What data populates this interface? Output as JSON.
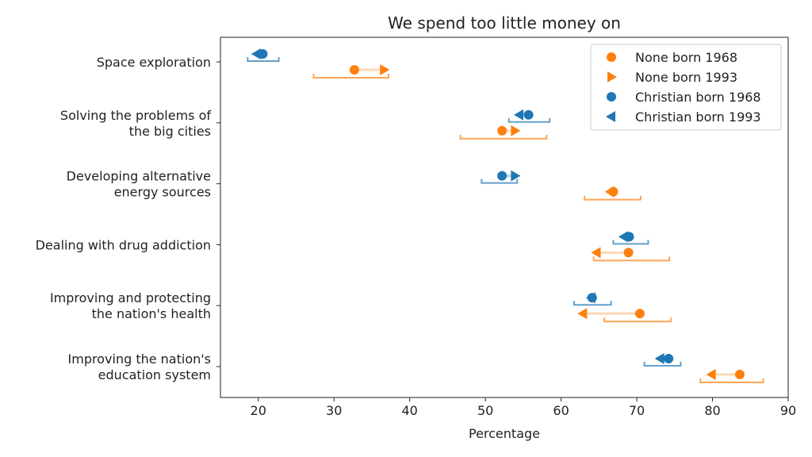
{
  "chart_data": {
    "type": "scatter",
    "title": "We spend too little money on",
    "xlabel": "Percentage",
    "ylabel": "",
    "xlim": [
      15,
      90
    ],
    "xticks": [
      20,
      30,
      40,
      50,
      60,
      70,
      80,
      90
    ],
    "grid": false,
    "legend_position": "top-right",
    "colors": {
      "none": "#ff7f0e",
      "christian": "#1f77b4"
    },
    "categories": [
      [
        "Space exploration"
      ],
      [
        "Solving the problems of",
        "the big cities"
      ],
      [
        "Developing alternative",
        "energy sources"
      ],
      [
        "Dealing with drug addiction"
      ],
      [
        "Improving and protecting",
        "the nation's health"
      ],
      [
        "Improving the nation's",
        "education system"
      ]
    ],
    "series": [
      {
        "name": "None born 1968",
        "group": "none",
        "marker": "circle",
        "values": [
          32.7,
          52.2,
          66.9,
          68.9,
          70.4,
          83.6
        ]
      },
      {
        "name": "None born 1993",
        "group": "none",
        "marker": "triangle-right",
        "values": [
          36.6,
          53.9,
          66.5,
          64.7,
          62.9,
          79.9
        ]
      },
      {
        "name": "Christian born 1968",
        "group": "christian",
        "marker": "circle",
        "values": [
          20.6,
          55.7,
          52.2,
          69.0,
          64.1,
          74.2
        ]
      },
      {
        "name": "Christian born 1993",
        "group": "christian",
        "marker": "triangle-left",
        "values": [
          19.8,
          54.5,
          53.9,
          68.3,
          64.0,
          73.1
        ]
      }
    ],
    "intervals": {
      "none": [
        [
          27.3,
          37.2
        ],
        [
          46.7,
          58.1
        ],
        [
          63.1,
          70.5
        ],
        [
          64.3,
          74.3
        ],
        [
          65.7,
          74.5
        ],
        [
          78.4,
          86.7
        ]
      ],
      "christian": [
        [
          18.6,
          22.7
        ],
        [
          53.1,
          58.5
        ],
        [
          49.5,
          54.2
        ],
        [
          66.9,
          71.5
        ],
        [
          61.7,
          66.6
        ],
        [
          71.0,
          75.8
        ]
      ]
    }
  }
}
